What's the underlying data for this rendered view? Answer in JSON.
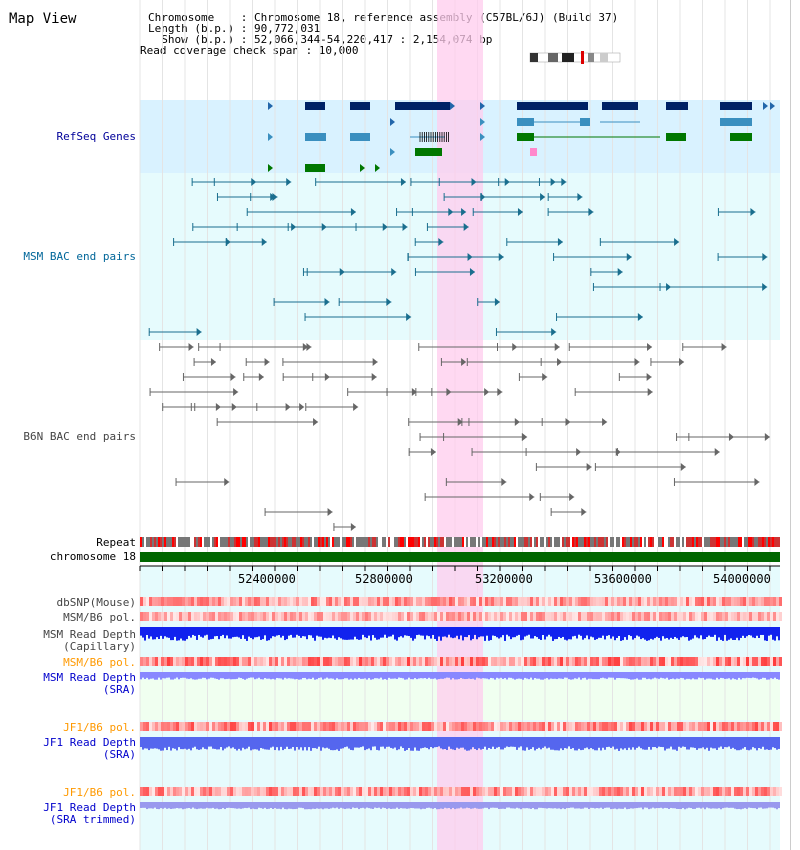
{
  "page_title": "Map View",
  "info": {
    "chromosome_line": "Chromosome    : Chromosome 18, reference assembly (C57BL/6J) (Build 37)",
    "length_line": "Length (b.p.) : 90,772,031",
    "show_line": "  Show (b.p.) : 52,066,344-54,220,417 : 2,154,074 bp",
    "coverage_line": "Read coverage check span : 10,000"
  },
  "tracks": {
    "refseq": "RefSeq Genes",
    "msm_bac": "MSM BAC end pairs",
    "b6n_bac": "B6N BAC end pairs",
    "repeat": "Repeat",
    "chromosome": "chromosome 18",
    "dbsnp": "dbSNP(Mouse)",
    "msm_b6_pol_1": "MSM/B6 pol.",
    "msm_depth_cap_1": "MSM Read Depth",
    "msm_depth_cap_2": "(Capillary)",
    "msm_b6_pol_2": "MSM/B6 pol.",
    "msm_depth_sra_1": "MSM Read Depth",
    "msm_depth_sra_2": "(SRA)",
    "jf1_b6_pol_1": "JF1/B6 pol.",
    "jf1_depth_sra_1": "JF1 Read Depth",
    "jf1_depth_sra_2": "(SRA)",
    "jf1_b6_pol_2": "JF1/B6 pol.",
    "jf1_depth_trim_1": "JF1 Read Depth",
    "jf1_depth_trim_2": "(SRA trimmed)"
  },
  "axis_ticks": [
    "52400000",
    "52800000",
    "53200000",
    "53600000",
    "54000000"
  ],
  "colors": {
    "refseq_label": "#000099",
    "msm_label": "#006699",
    "b6n_label": "#444444",
    "pol_label": "#ff9900",
    "depth_label": "#0000cc",
    "highlight": "#ffccee",
    "chromosome_bar": "#006600",
    "refseq_bg": "#d9f2ff",
    "bac_bg": "#e6fbfd"
  }
}
